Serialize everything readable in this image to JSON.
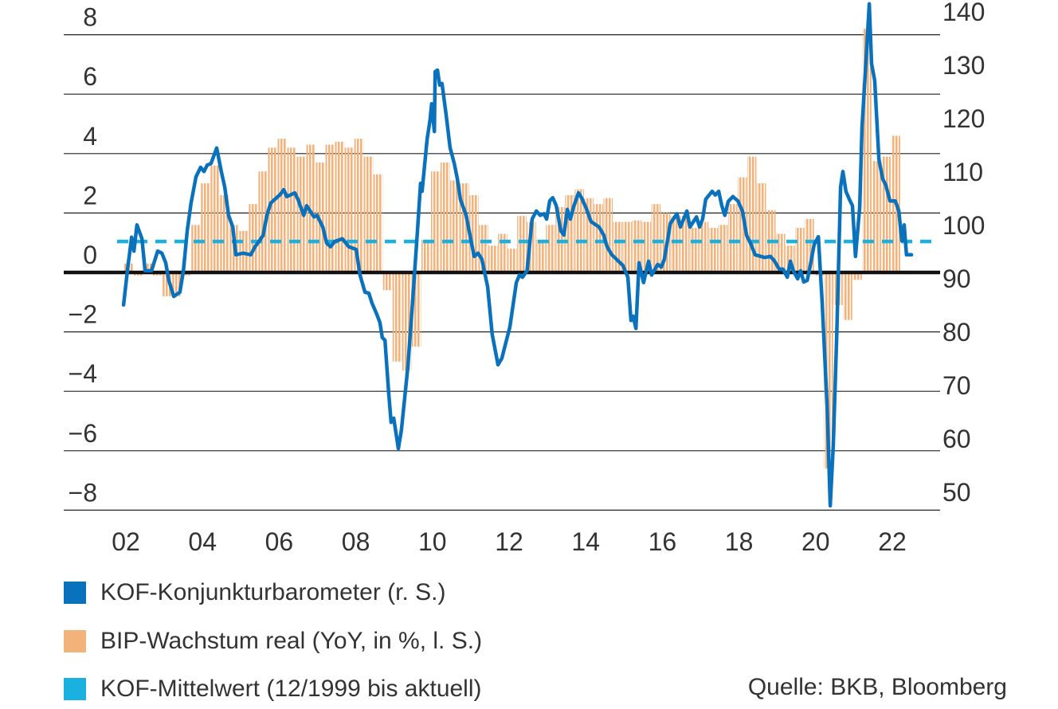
{
  "chart_data": {
    "type": "bar+line",
    "left_axis": {
      "range": [
        -8,
        8
      ],
      "ticks": [
        "8",
        "6",
        "4",
        "2",
        "0",
        "−2",
        "−4",
        "−6",
        "−8"
      ],
      "tick_values": [
        8,
        6,
        4,
        2,
        0,
        -2,
        -4,
        -6,
        -8
      ]
    },
    "right_axis": {
      "range": [
        50,
        140
      ],
      "ticks": [
        "140",
        "130",
        "120",
        "110",
        "100",
        "90",
        "80",
        "70",
        "60",
        "50"
      ],
      "tick_values": [
        140,
        130,
        120,
        110,
        100,
        90,
        80,
        70,
        60,
        50
      ]
    },
    "x_axis": {
      "ticks": [
        "02",
        "04",
        "06",
        "08",
        "10",
        "12",
        "14",
        "16",
        "18",
        "20",
        "22"
      ],
      "tick_years": [
        2002,
        2004,
        2006,
        2008,
        2010,
        2012,
        2014,
        2016,
        2018,
        2020,
        2022
      ]
    },
    "grid": true,
    "series": [
      {
        "name": "KOF-Konjunkturbarometer (r. S.)",
        "type": "line",
        "axis": "right",
        "color": "#0a72bd",
        "points": [
          [
            2001.94,
            85.1
          ],
          [
            2002.04,
            91.5
          ],
          [
            2002.15,
            97.8
          ],
          [
            2002.21,
            95.2
          ],
          [
            2002.29,
            100.1
          ],
          [
            2002.42,
            97.5
          ],
          [
            2002.5,
            91.5
          ],
          [
            2002.67,
            91.5
          ],
          [
            2002.83,
            95.2
          ],
          [
            2002.94,
            94.8
          ],
          [
            2003.04,
            93.0
          ],
          [
            2003.12,
            89.7
          ],
          [
            2003.25,
            86.7
          ],
          [
            2003.41,
            87.5
          ],
          [
            2003.5,
            91.5
          ],
          [
            2003.6,
            99.0
          ],
          [
            2003.7,
            104.2
          ],
          [
            2003.83,
            109.1
          ],
          [
            2003.95,
            110.9
          ],
          [
            2004.04,
            110.1
          ],
          [
            2004.12,
            111.3
          ],
          [
            2004.22,
            111.6
          ],
          [
            2004.37,
            114.5
          ],
          [
            2004.49,
            110.1
          ],
          [
            2004.58,
            107.2
          ],
          [
            2004.68,
            101.9
          ],
          [
            2004.79,
            99.7
          ],
          [
            2004.87,
            94.5
          ],
          [
            2005.06,
            94.8
          ],
          [
            2005.26,
            94.5
          ],
          [
            2005.37,
            96.0
          ],
          [
            2005.58,
            98.1
          ],
          [
            2005.68,
            101.9
          ],
          [
            2005.78,
            104.2
          ],
          [
            2006.03,
            105.8
          ],
          [
            2006.12,
            106.7
          ],
          [
            2006.2,
            105.4
          ],
          [
            2006.41,
            106.1
          ],
          [
            2006.49,
            104.9
          ],
          [
            2006.64,
            101.9
          ],
          [
            2006.72,
            103.7
          ],
          [
            2006.91,
            101.6
          ],
          [
            2006.99,
            101.9
          ],
          [
            2007.14,
            99.7
          ],
          [
            2007.24,
            96.7
          ],
          [
            2007.34,
            96.0
          ],
          [
            2007.45,
            97.0
          ],
          [
            2007.65,
            97.5
          ],
          [
            2007.82,
            96.0
          ],
          [
            2008.01,
            95.5
          ],
          [
            2008.11,
            90.7
          ],
          [
            2008.24,
            87.5
          ],
          [
            2008.34,
            87.3
          ],
          [
            2008.42,
            85.5
          ],
          [
            2008.55,
            83.3
          ],
          [
            2008.63,
            81.8
          ],
          [
            2008.69,
            79.0
          ],
          [
            2008.76,
            78.5
          ],
          [
            2008.86,
            68.4
          ],
          [
            2008.92,
            63.1
          ],
          [
            2008.99,
            63.9
          ],
          [
            2009.11,
            58.2
          ],
          [
            2009.19,
            61.6
          ],
          [
            2009.36,
            73.6
          ],
          [
            2009.48,
            85.5
          ],
          [
            2009.61,
            99.0
          ],
          [
            2009.69,
            107.9
          ],
          [
            2009.73,
            106.4
          ],
          [
            2009.78,
            110.1
          ],
          [
            2009.86,
            116.1
          ],
          [
            2009.94,
            119.9
          ],
          [
            2009.98,
            122.8
          ],
          [
            2010.05,
            117.6
          ],
          [
            2010.07,
            128.8
          ],
          [
            2010.13,
            129.1
          ],
          [
            2010.19,
            126.3
          ],
          [
            2010.25,
            126.6
          ],
          [
            2010.36,
            120.6
          ],
          [
            2010.46,
            114.6
          ],
          [
            2010.57,
            111.6
          ],
          [
            2010.65,
            108.7
          ],
          [
            2010.73,
            104.9
          ],
          [
            2010.88,
            101.9
          ],
          [
            2010.98,
            98.2
          ],
          [
            2011.09,
            94.2
          ],
          [
            2011.19,
            94.8
          ],
          [
            2011.29,
            93.7
          ],
          [
            2011.44,
            88.5
          ],
          [
            2011.56,
            79.6
          ],
          [
            2011.71,
            73.9
          ],
          [
            2011.81,
            75.1
          ],
          [
            2012.02,
            81.0
          ],
          [
            2012.19,
            89.3
          ],
          [
            2012.27,
            90.7
          ],
          [
            2012.35,
            90.3
          ],
          [
            2012.47,
            91.5
          ],
          [
            2012.6,
            101.2
          ],
          [
            2012.71,
            102.7
          ],
          [
            2012.81,
            101.9
          ],
          [
            2012.91,
            102.2
          ],
          [
            2012.98,
            101.2
          ],
          [
            2013.06,
            104.6
          ],
          [
            2013.14,
            105.2
          ],
          [
            2013.23,
            103.7
          ],
          [
            2013.35,
            99.0
          ],
          [
            2013.43,
            98.2
          ],
          [
            2013.52,
            103.0
          ],
          [
            2013.6,
            101.2
          ],
          [
            2013.68,
            103.4
          ],
          [
            2013.81,
            106.1
          ],
          [
            2013.89,
            105.2
          ],
          [
            2014.02,
            103.1
          ],
          [
            2014.14,
            100.7
          ],
          [
            2014.35,
            99.7
          ],
          [
            2014.47,
            98.2
          ],
          [
            2014.56,
            96.0
          ],
          [
            2014.68,
            94.5
          ],
          [
            2014.97,
            92.5
          ],
          [
            2015.1,
            90.3
          ],
          [
            2015.18,
            82.2
          ],
          [
            2015.24,
            83.0
          ],
          [
            2015.31,
            80.7
          ],
          [
            2015.39,
            93.0
          ],
          [
            2015.51,
            89.3
          ],
          [
            2015.64,
            93.3
          ],
          [
            2015.72,
            90.7
          ],
          [
            2015.88,
            92.7
          ],
          [
            2015.97,
            92.2
          ],
          [
            2016.05,
            93.6
          ],
          [
            2016.21,
            100.4
          ],
          [
            2016.38,
            102.2
          ],
          [
            2016.47,
            99.7
          ],
          [
            2016.64,
            102.7
          ],
          [
            2016.72,
            99.7
          ],
          [
            2016.89,
            101.6
          ],
          [
            2016.97,
            99.7
          ],
          [
            2017.05,
            101.2
          ],
          [
            2017.13,
            104.9
          ],
          [
            2017.3,
            106.4
          ],
          [
            2017.38,
            105.7
          ],
          [
            2017.47,
            106.4
          ],
          [
            2017.55,
            103.7
          ],
          [
            2017.63,
            101.9
          ],
          [
            2017.72,
            104.5
          ],
          [
            2017.84,
            105.4
          ],
          [
            2017.97,
            104.6
          ],
          [
            2018.09,
            102.7
          ],
          [
            2018.2,
            98.1
          ],
          [
            2018.3,
            96.7
          ],
          [
            2018.42,
            94.5
          ],
          [
            2018.67,
            94.0
          ],
          [
            2018.82,
            94.2
          ],
          [
            2018.92,
            93.4
          ],
          [
            2019.05,
            91.8
          ],
          [
            2019.15,
            91.8
          ],
          [
            2019.26,
            90.3
          ],
          [
            2019.34,
            93.3
          ],
          [
            2019.42,
            91.5
          ],
          [
            2019.53,
            90.0
          ],
          [
            2019.61,
            91.5
          ],
          [
            2019.69,
            89.4
          ],
          [
            2019.78,
            89.7
          ],
          [
            2019.86,
            92.5
          ],
          [
            2019.96,
            96.4
          ],
          [
            2020.07,
            97.9
          ],
          [
            2020.17,
            85.5
          ],
          [
            2020.3,
            66.1
          ],
          [
            2020.38,
            47.5
          ],
          [
            2020.46,
            58.7
          ],
          [
            2020.55,
            79.6
          ],
          [
            2020.65,
            107.2
          ],
          [
            2020.71,
            110.1
          ],
          [
            2020.79,
            106.4
          ],
          [
            2020.88,
            104.9
          ],
          [
            2020.96,
            103.7
          ],
          [
            2021.04,
            94.2
          ],
          [
            2021.15,
            103.4
          ],
          [
            2021.21,
            118.4
          ],
          [
            2021.31,
            130.3
          ],
          [
            2021.4,
            141.5
          ],
          [
            2021.46,
            130.3
          ],
          [
            2021.54,
            127.2
          ],
          [
            2021.65,
            112.4
          ],
          [
            2021.75,
            108.7
          ],
          [
            2021.83,
            107.6
          ],
          [
            2021.94,
            104.6
          ],
          [
            2022.08,
            104.6
          ],
          [
            2022.17,
            102.7
          ],
          [
            2022.25,
            97.1
          ],
          [
            2022.31,
            100.1
          ],
          [
            2022.37,
            94.5
          ],
          [
            2022.5,
            94.5
          ]
        ]
      },
      {
        "name": "BIP-Wachstum real (YoY, in %, l. S.)",
        "type": "bar",
        "axis": "left",
        "color": "#f2b27a",
        "start_quarter": "2002Q1",
        "values": [
          0.3,
          -0.1,
          0.3,
          -0.1,
          -0.8,
          -0.8,
          -0.1,
          1.6,
          3.0,
          3.6,
          2.6,
          1.6,
          1.4,
          2.3,
          3.4,
          4.2,
          4.5,
          4.2,
          3.9,
          4.3,
          3.7,
          4.3,
          4.4,
          4.2,
          4.5,
          3.9,
          3.3,
          -0.6,
          -3.0,
          -3.3,
          -2.5,
          1.1,
          3.4,
          3.7,
          3.1,
          3.0,
          2.6,
          1.6,
          0.9,
          1.3,
          0.8,
          1.9,
          1.7,
          1.1,
          1.6,
          2.2,
          2.6,
          2.8,
          2.5,
          2.3,
          2.5,
          1.7,
          1.7,
          1.75,
          1.7,
          2.3,
          2.0,
          1.9,
          1.9,
          1.5,
          1.7,
          1.5,
          1.6,
          2.3,
          3.2,
          3.9,
          3.0,
          2.1,
          1.3,
          0.9,
          1.5,
          1.8,
          -0.1,
          -6.6,
          -1.1,
          -1.6,
          -0.25,
          8.2,
          3.75,
          3.9,
          4.6
        ]
      },
      {
        "name": "KOF-Mittelwert (12/1999 bis aktuell)",
        "type": "hline",
        "axis": "right",
        "color": "#1ab0e0",
        "value": 97.0
      }
    ],
    "legend_placement": "bottom-left",
    "source": "Quelle: BKB, Bloomberg"
  }
}
